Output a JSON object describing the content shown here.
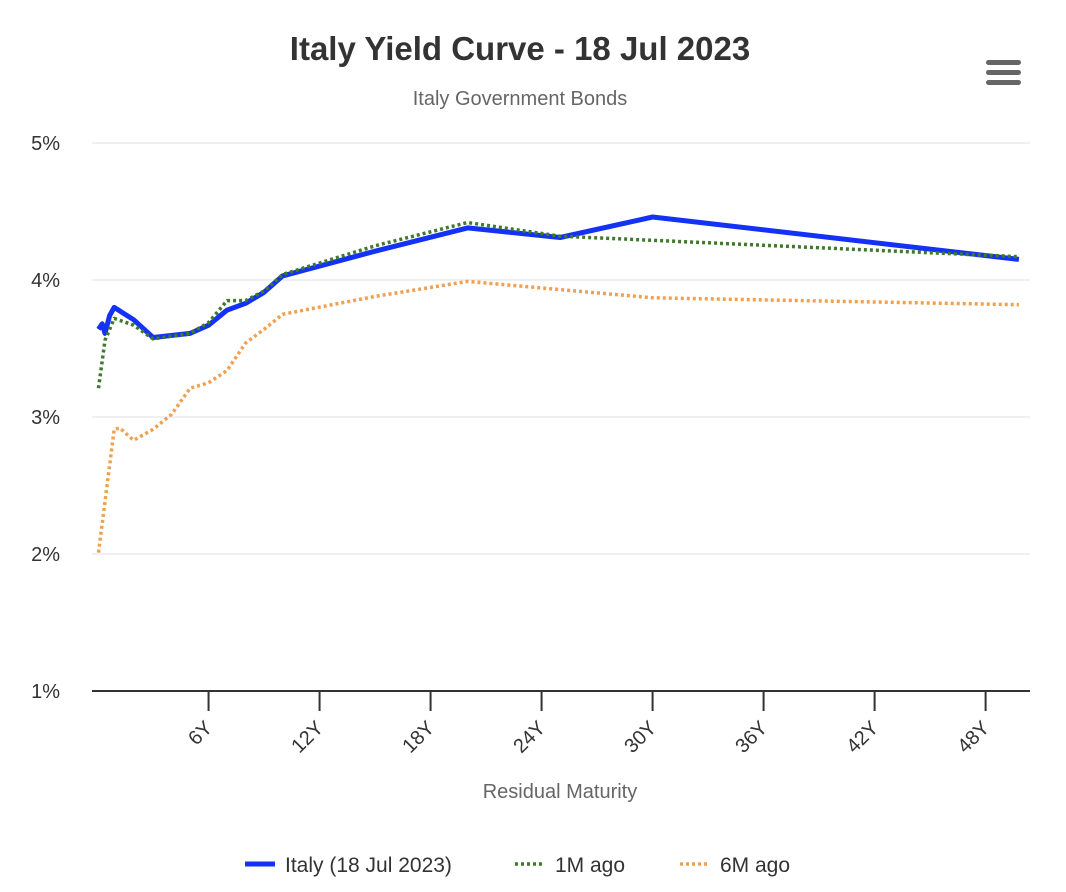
{
  "chart_data": {
    "type": "line",
    "title": "Italy Yield Curve - 18 Jul 2023",
    "subtitle": "Italy Government Bonds",
    "x_label": "Residual Maturity",
    "xlim": [
      -0.3,
      50.4
    ],
    "xticks": [
      {
        "value": 6,
        "label": "6Y"
      },
      {
        "value": 12,
        "label": "12Y"
      },
      {
        "value": 18,
        "label": "18Y"
      },
      {
        "value": 24,
        "label": "24Y"
      },
      {
        "value": 30,
        "label": "30Y"
      },
      {
        "value": 36,
        "label": "36Y"
      },
      {
        "value": 42,
        "label": "42Y"
      },
      {
        "value": 48,
        "label": "48Y"
      }
    ],
    "ylim": [
      1,
      5
    ],
    "yticks": [
      {
        "value": 1,
        "label": "1%"
      },
      {
        "value": 2,
        "label": "2%"
      },
      {
        "value": 3,
        "label": "3%"
      },
      {
        "value": 4,
        "label": "4%"
      },
      {
        "value": 5,
        "label": "5%"
      }
    ],
    "grid": true,
    "series": [
      {
        "name": "Italy (18 Jul 2023)",
        "color": "#1432f5",
        "dash": "solid",
        "x": [
          0.05,
          0.25,
          0.4,
          0.65,
          0.9,
          1.95,
          3,
          5,
          6,
          7,
          8,
          9,
          10,
          15,
          20,
          25,
          30,
          49.8
        ],
        "values": [
          3.64,
          3.68,
          3.61,
          3.74,
          3.8,
          3.71,
          3.58,
          3.61,
          3.67,
          3.78,
          3.83,
          3.91,
          4.03,
          4.21,
          4.38,
          4.31,
          4.46,
          4.15
        ]
      },
      {
        "name": "1M ago",
        "color": "#3f7a2a",
        "dash": "dotted",
        "x": [
          0.05,
          0.4,
          0.9,
          1.95,
          3,
          5,
          6,
          7,
          8,
          9,
          10,
          15,
          20,
          25,
          30,
          49.8
        ],
        "values": [
          3.21,
          3.56,
          3.72,
          3.67,
          3.57,
          3.61,
          3.69,
          3.85,
          3.85,
          3.92,
          4.04,
          4.25,
          4.42,
          4.32,
          4.29,
          4.17
        ]
      },
      {
        "name": "6M ago",
        "color": "#f0a050",
        "dash": "dotted",
        "x": [
          0.05,
          0.9,
          1.2,
          1.95,
          3,
          4,
          5,
          6,
          7,
          8,
          9,
          10,
          15,
          20,
          25,
          30,
          49.8
        ],
        "values": [
          2.01,
          2.91,
          2.92,
          2.83,
          2.91,
          3.02,
          3.21,
          3.25,
          3.34,
          3.54,
          3.64,
          3.75,
          3.88,
          3.99,
          3.93,
          3.87,
          3.82
        ]
      }
    ]
  }
}
